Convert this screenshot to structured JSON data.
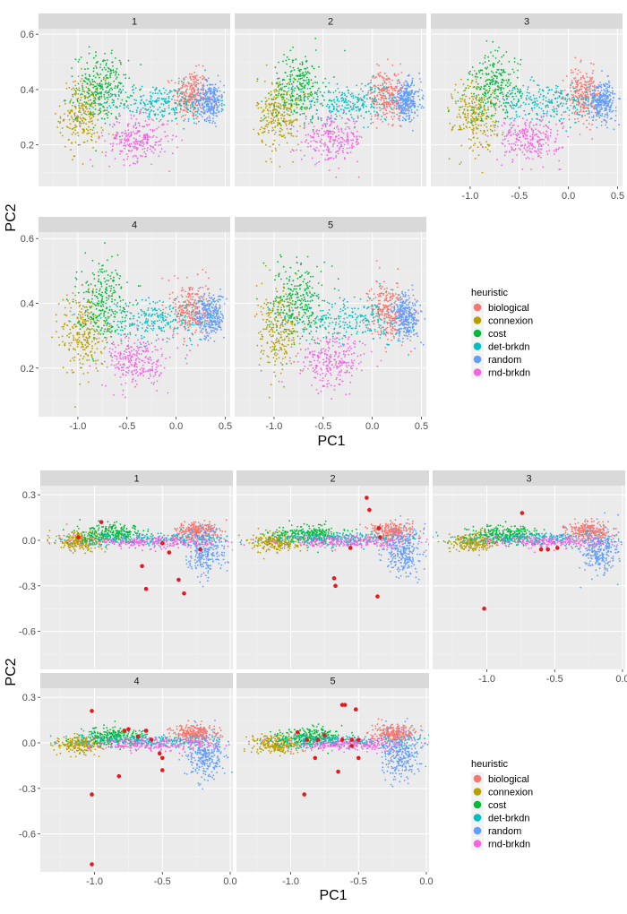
{
  "chart_data": [
    {
      "type": "scatter",
      "facets": [
        "1",
        "2",
        "3",
        "4",
        "5"
      ],
      "xlabel": "PC1",
      "ylabel": "PC2",
      "xlim": [
        -1.4,
        0.55
      ],
      "ylim": [
        0.05,
        0.62
      ],
      "xticks": [
        -1.0,
        -0.5,
        0.0,
        0.5
      ],
      "xtick_labels": [
        "-1.0",
        "-0.5",
        "0.0",
        "0.5"
      ],
      "yticks": [
        0.2,
        0.4,
        0.6
      ],
      "ytick_labels": [
        "0.2",
        "0.4",
        "0.6"
      ],
      "grid": true,
      "legend_title": "heuristic",
      "legend_position": "right",
      "series": [
        {
          "name": "biological",
          "color": "#F8766D",
          "center": [
            0.15,
            0.38
          ],
          "spread": [
            0.09,
            0.045
          ]
        },
        {
          "name": "connexion",
          "color": "#B79F00",
          "center": [
            -0.95,
            0.31
          ],
          "spread": [
            0.11,
            0.065
          ]
        },
        {
          "name": "cost",
          "color": "#00BA38",
          "center": [
            -0.75,
            0.41
          ],
          "spread": [
            0.13,
            0.06
          ]
        },
        {
          "name": "det-brkdn",
          "color": "#00BFC4",
          "center": [
            -0.2,
            0.35
          ],
          "spread": [
            0.3,
            0.035
          ]
        },
        {
          "name": "random",
          "color": "#619CFF",
          "center": [
            0.35,
            0.36
          ],
          "spread": [
            0.07,
            0.035
          ]
        },
        {
          "name": "rnd-brkdn",
          "color": "#F564E3",
          "center": [
            -0.4,
            0.22
          ],
          "spread": [
            0.16,
            0.04
          ]
        }
      ]
    },
    {
      "type": "scatter",
      "facets": [
        "1",
        "2",
        "3",
        "4",
        "5"
      ],
      "xlabel": "PC1",
      "ylabel": "PC2",
      "xlim": [
        -1.4,
        0.02
      ],
      "ylim": [
        -0.85,
        0.36
      ],
      "xticks": [
        -1.0,
        -0.5,
        0.0
      ],
      "xtick_labels": [
        "-1.0",
        "-0.5",
        "0.0"
      ],
      "yticks": [
        -0.6,
        -0.3,
        0.0,
        0.3
      ],
      "ytick_labels": [
        "-0.6",
        "-0.3",
        "0.0",
        "0.3"
      ],
      "grid": true,
      "legend_title": "heuristic",
      "legend_position": "right",
      "series": [
        {
          "name": "biological",
          "color": "#F8766D",
          "center": [
            -0.25,
            0.06
          ],
          "spread": [
            0.08,
            0.03
          ]
        },
        {
          "name": "connexion",
          "color": "#B79F00",
          "center": [
            -1.1,
            -0.01
          ],
          "spread": [
            0.09,
            0.03
          ]
        },
        {
          "name": "cost",
          "color": "#00BA38",
          "center": [
            -0.85,
            0.04
          ],
          "spread": [
            0.12,
            0.03
          ]
        },
        {
          "name": "det-brkdn",
          "color": "#00BFC4",
          "center": [
            -0.6,
            0.01
          ],
          "spread": [
            0.3,
            0.02
          ]
        },
        {
          "name": "random",
          "color": "#619CFF",
          "center": [
            -0.18,
            -0.08
          ],
          "spread": [
            0.07,
            0.08
          ]
        },
        {
          "name": "rnd-brkdn",
          "color": "#F564E3",
          "center": [
            -0.55,
            -0.01
          ],
          "spread": [
            0.25,
            0.02
          ]
        }
      ],
      "highlight_color": "#E41A1C",
      "highlight_points": {
        "1": [
          [
            -1.12,
            0.02
          ],
          [
            -0.95,
            0.12
          ],
          [
            -0.65,
            -0.17
          ],
          [
            -0.62,
            -0.32
          ],
          [
            -0.5,
            -0.02
          ],
          [
            -0.45,
            -0.08
          ],
          [
            -0.38,
            -0.26
          ],
          [
            -0.34,
            -0.35
          ],
          [
            -0.22,
            -0.06
          ]
        ],
        "2": [
          [
            -0.44,
            0.28
          ],
          [
            -0.42,
            0.2
          ],
          [
            -0.35,
            0.08
          ],
          [
            -0.34,
            0.02
          ],
          [
            -0.56,
            -0.05
          ],
          [
            -0.68,
            -0.25
          ],
          [
            -0.67,
            -0.3
          ],
          [
            -0.36,
            -0.37
          ]
        ],
        "3": [
          [
            -0.74,
            0.18
          ],
          [
            -1.02,
            -0.45
          ],
          [
            -0.6,
            -0.06
          ],
          [
            -0.55,
            -0.06
          ],
          [
            -0.48,
            -0.05
          ]
        ],
        "4": [
          [
            -1.02,
            0.21
          ],
          [
            -0.78,
            0.08
          ],
          [
            -0.75,
            0.09
          ],
          [
            -0.68,
            0.04
          ],
          [
            -0.62,
            0.08
          ],
          [
            -0.58,
            0.02
          ],
          [
            -0.52,
            -0.07
          ],
          [
            -0.5,
            -0.1
          ],
          [
            -0.5,
            -0.18
          ],
          [
            -0.82,
            -0.22
          ],
          [
            -1.02,
            -0.34
          ],
          [
            -1.02,
            -0.8
          ]
        ],
        "5": [
          [
            -0.62,
            0.25
          ],
          [
            -0.6,
            0.25
          ],
          [
            -0.52,
            0.22
          ],
          [
            -0.95,
            0.07
          ],
          [
            -0.8,
            0.02
          ],
          [
            -0.75,
            0.05
          ],
          [
            -0.62,
            0.02
          ],
          [
            -0.55,
            -0.02
          ],
          [
            -0.55,
            0.02
          ],
          [
            -0.5,
            0.02
          ],
          [
            -0.5,
            -0.1
          ],
          [
            -0.88,
            0.02
          ],
          [
            -0.82,
            -0.1
          ],
          [
            -0.65,
            -0.19
          ],
          [
            -0.9,
            -0.34
          ]
        ]
      }
    }
  ]
}
